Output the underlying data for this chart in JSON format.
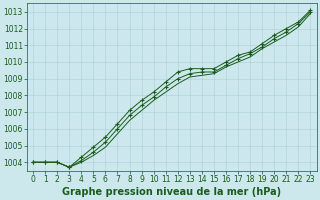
{
  "xlabel": "Graphe pression niveau de la mer (hPa)",
  "x": [
    0,
    1,
    2,
    3,
    4,
    5,
    6,
    7,
    8,
    9,
    10,
    11,
    12,
    13,
    14,
    15,
    16,
    17,
    18,
    19,
    20,
    21,
    22,
    23
  ],
  "line1": [
    1004.0,
    1004.0,
    1004.0,
    1003.7,
    1004.3,
    1004.9,
    1005.5,
    1006.3,
    1007.1,
    1007.7,
    1008.2,
    1008.8,
    1009.4,
    1009.6,
    1009.6,
    1009.6,
    1010.0,
    1010.4,
    1010.6,
    1011.1,
    1011.6,
    1012.0,
    1012.4,
    1013.1
  ],
  "line2": [
    1004.0,
    1004.0,
    1004.0,
    1003.7,
    1004.1,
    1004.6,
    1005.2,
    1006.0,
    1006.8,
    1007.4,
    1007.9,
    1008.5,
    1009.0,
    1009.3,
    1009.4,
    1009.4,
    1009.8,
    1010.2,
    1010.5,
    1010.9,
    1011.4,
    1011.8,
    1012.3,
    1013.0
  ],
  "line3": [
    1004.0,
    1004.0,
    1004.0,
    1003.7,
    1004.0,
    1004.4,
    1004.9,
    1005.7,
    1006.5,
    1007.1,
    1007.7,
    1008.2,
    1008.7,
    1009.1,
    1009.2,
    1009.3,
    1009.7,
    1010.0,
    1010.3,
    1010.8,
    1011.2,
    1011.6,
    1012.1,
    1012.9
  ],
  "ylim_min": 1003.5,
  "ylim_max": 1013.5,
  "yticks": [
    1004,
    1005,
    1006,
    1007,
    1008,
    1009,
    1010,
    1011,
    1012,
    1013
  ],
  "line_color": "#1a5c1a",
  "bg_color": "#cce8ed",
  "grid_color": "#aacfd8",
  "tick_label_color": "#1a5c1a",
  "xlabel_color": "#1a5c1a",
  "xlabel_fontsize": 7.0,
  "tick_fontsize": 5.5
}
